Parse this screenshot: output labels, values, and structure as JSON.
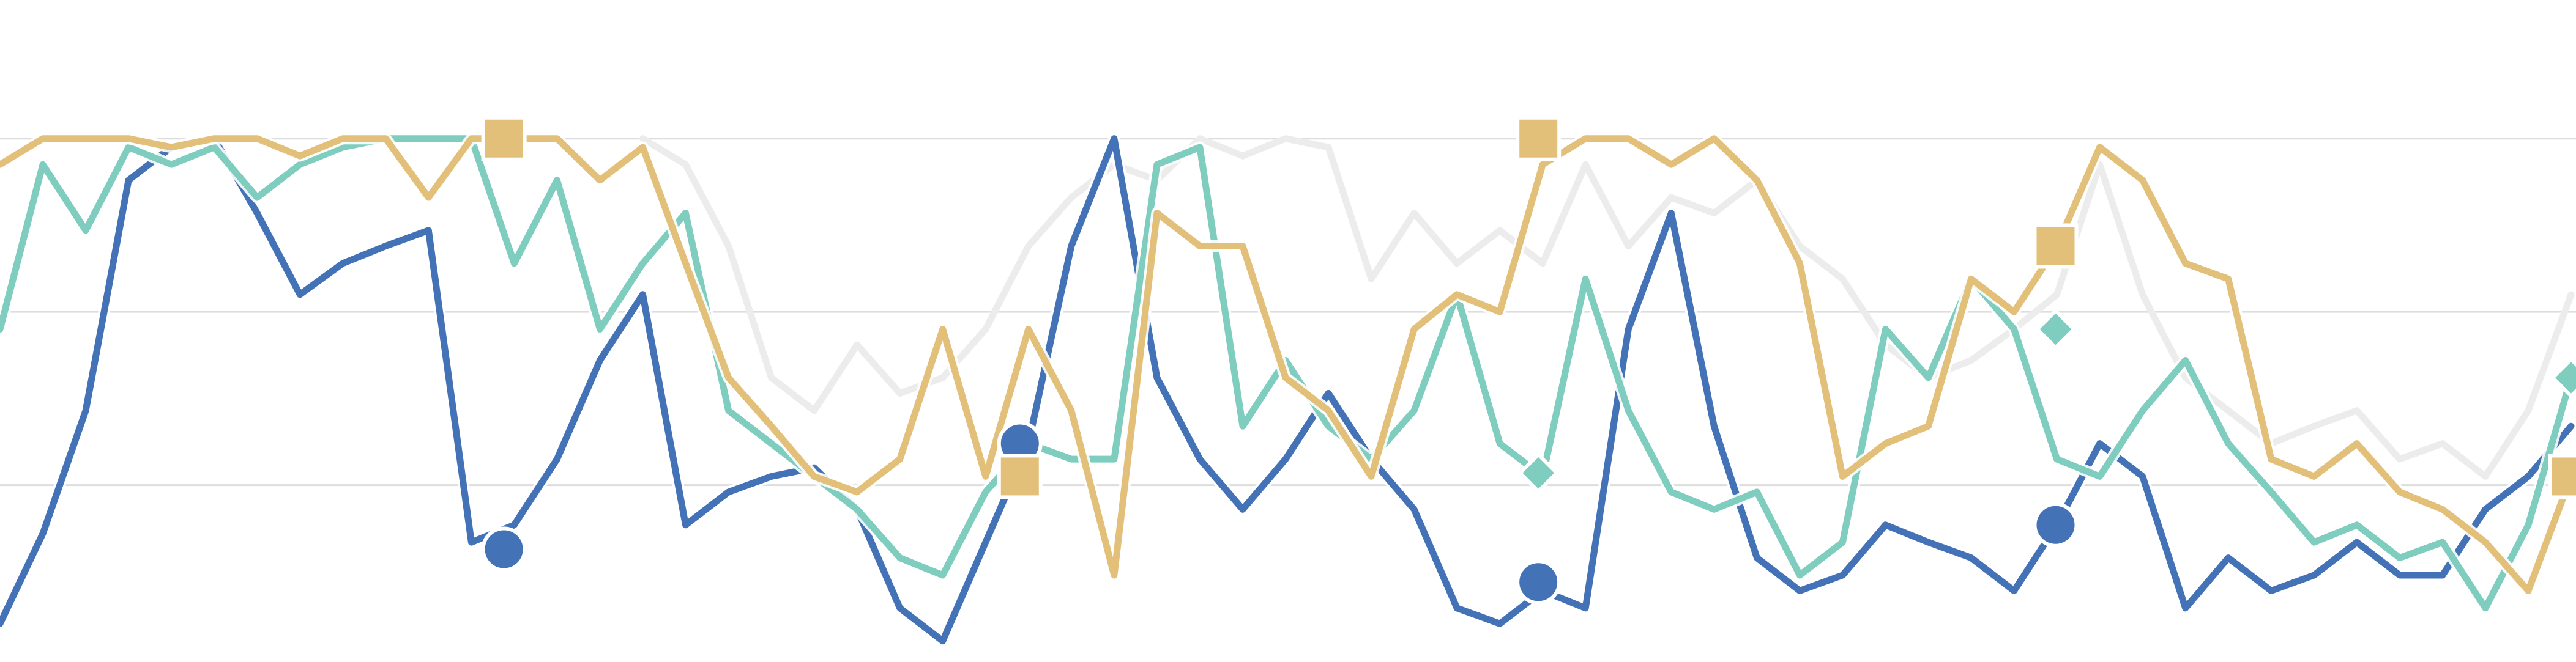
{
  "chart_data": {
    "type": "line",
    "xlim": [
      0,
      60
    ],
    "ylim": [
      0,
      3.8
    ],
    "yticks": [
      1,
      2,
      3
    ],
    "grid": true,
    "x": [
      0,
      1,
      2,
      3,
      4,
      5,
      6,
      7,
      8,
      9,
      10,
      11,
      12,
      13,
      14,
      15,
      16,
      17,
      18,
      19,
      20,
      21,
      22,
      23,
      24,
      25,
      26,
      27,
      28,
      29,
      30,
      31,
      32,
      33,
      34,
      35,
      36,
      37,
      38,
      39,
      40,
      41,
      42,
      43,
      44,
      45,
      46,
      47,
      48,
      49,
      50,
      51,
      52,
      53,
      54,
      55,
      56,
      57,
      58,
      59,
      60
    ],
    "series": [
      {
        "color": "#ececec",
        "values": [
          null,
          null,
          null,
          null,
          null,
          null,
          null,
          null,
          null,
          null,
          null,
          null,
          null,
          null,
          null,
          3,
          2.85,
          2.38,
          1.62,
          1.43,
          1.81,
          1.53,
          1.62,
          1.9,
          2.38,
          2.66,
          2.85,
          2.76,
          3,
          2.9,
          3,
          2.95,
          2.19,
          2.57,
          2.28,
          2.47,
          2.28,
          2.85,
          2.38,
          2.66,
          2.57,
          2.76,
          2.38,
          2.19,
          1.81,
          1.62,
          1.72,
          1.9,
          2.1,
          2.85,
          2.1,
          1.62,
          1.43,
          1.24,
          1.34,
          1.43,
          1.15,
          1.24,
          1.05,
          1.43,
          2.1
        ]
      },
      {
        "color": "#4472b6",
        "marker": "circle",
        "values": [
          0.2,
          0.72,
          1.43,
          2.76,
          2.95,
          3,
          2.57,
          2.1,
          2.28,
          2.38,
          2.47,
          0.67,
          0.77,
          1.15,
          1.72,
          2.1,
          0.77,
          0.96,
          1.05,
          1.1,
          0.86,
          0.29,
          0.1,
          0.67,
          1.24,
          2.38,
          3,
          1.62,
          1.15,
          0.86,
          1.15,
          1.53,
          1.15,
          0.86,
          0.29,
          0.2,
          0.39,
          0.29,
          1.9,
          2.57,
          1.34,
          0.58,
          0.39,
          0.48,
          0.77,
          0.67,
          0.58,
          0.39,
          0.77,
          1.24,
          1.05,
          0.29,
          0.58,
          0.39,
          0.48,
          0.67,
          0.48,
          0.48,
          0.86,
          1.05,
          1.34
        ],
        "marker_x": [
          11.76,
          23.8,
          35.9,
          47.97
        ],
        "marker_values": [
          0.63,
          1.24,
          0.44,
          0.77
        ]
      },
      {
        "color": "#7fcdbe",
        "marker": "diamond",
        "values": [
          1.9,
          2.85,
          2.47,
          2.95,
          2.85,
          2.95,
          2.66,
          2.85,
          2.95,
          3,
          3,
          3,
          2.28,
          2.76,
          1.9,
          2.28,
          2.57,
          1.43,
          1.24,
          1.05,
          0.86,
          0.58,
          0.48,
          0.96,
          1.24,
          1.15,
          1.15,
          2.85,
          2.95,
          1.34,
          1.72,
          1.34,
          1.15,
          1.43,
          2.1,
          1.24,
          1.05,
          2.19,
          1.43,
          0.96,
          0.86,
          0.96,
          0.48,
          0.67,
          1.9,
          1.62,
          2.19,
          1.9,
          1.15,
          1.05,
          1.43,
          1.72,
          1.24,
          0.96,
          0.67,
          0.77,
          0.58,
          0.67,
          0.29,
          0.77,
          1.62
        ],
        "marker_x": [
          35.9,
          47.97,
          60
        ],
        "marker_values": [
          1.07,
          1.9,
          1.62
        ]
      },
      {
        "color": "#e2c07a",
        "marker": "square",
        "values": [
          2.85,
          3,
          3,
          3,
          2.95,
          3,
          3,
          2.9,
          3,
          3,
          2.66,
          3,
          3,
          3,
          2.76,
          2.95,
          2.28,
          1.62,
          1.34,
          1.05,
          0.96,
          1.15,
          1.9,
          1.05,
          1.9,
          1.43,
          0.48,
          2.57,
          2.38,
          2.38,
          1.62,
          1.43,
          1.05,
          1.9,
          2.1,
          2,
          2.85,
          3,
          3,
          2.85,
          3,
          2.76,
          2.28,
          1.05,
          1.24,
          1.34,
          2.19,
          2,
          2.38,
          2.95,
          2.76,
          2.28,
          2.19,
          1.15,
          1.05,
          1.24,
          0.96,
          0.86,
          0.67,
          0.39,
          1.05
        ],
        "marker_x": [
          11.76,
          23.8,
          35.9,
          47.97,
          60
        ],
        "marker_values": [
          3,
          1.05,
          3,
          2.38,
          1.05
        ]
      }
    ]
  }
}
